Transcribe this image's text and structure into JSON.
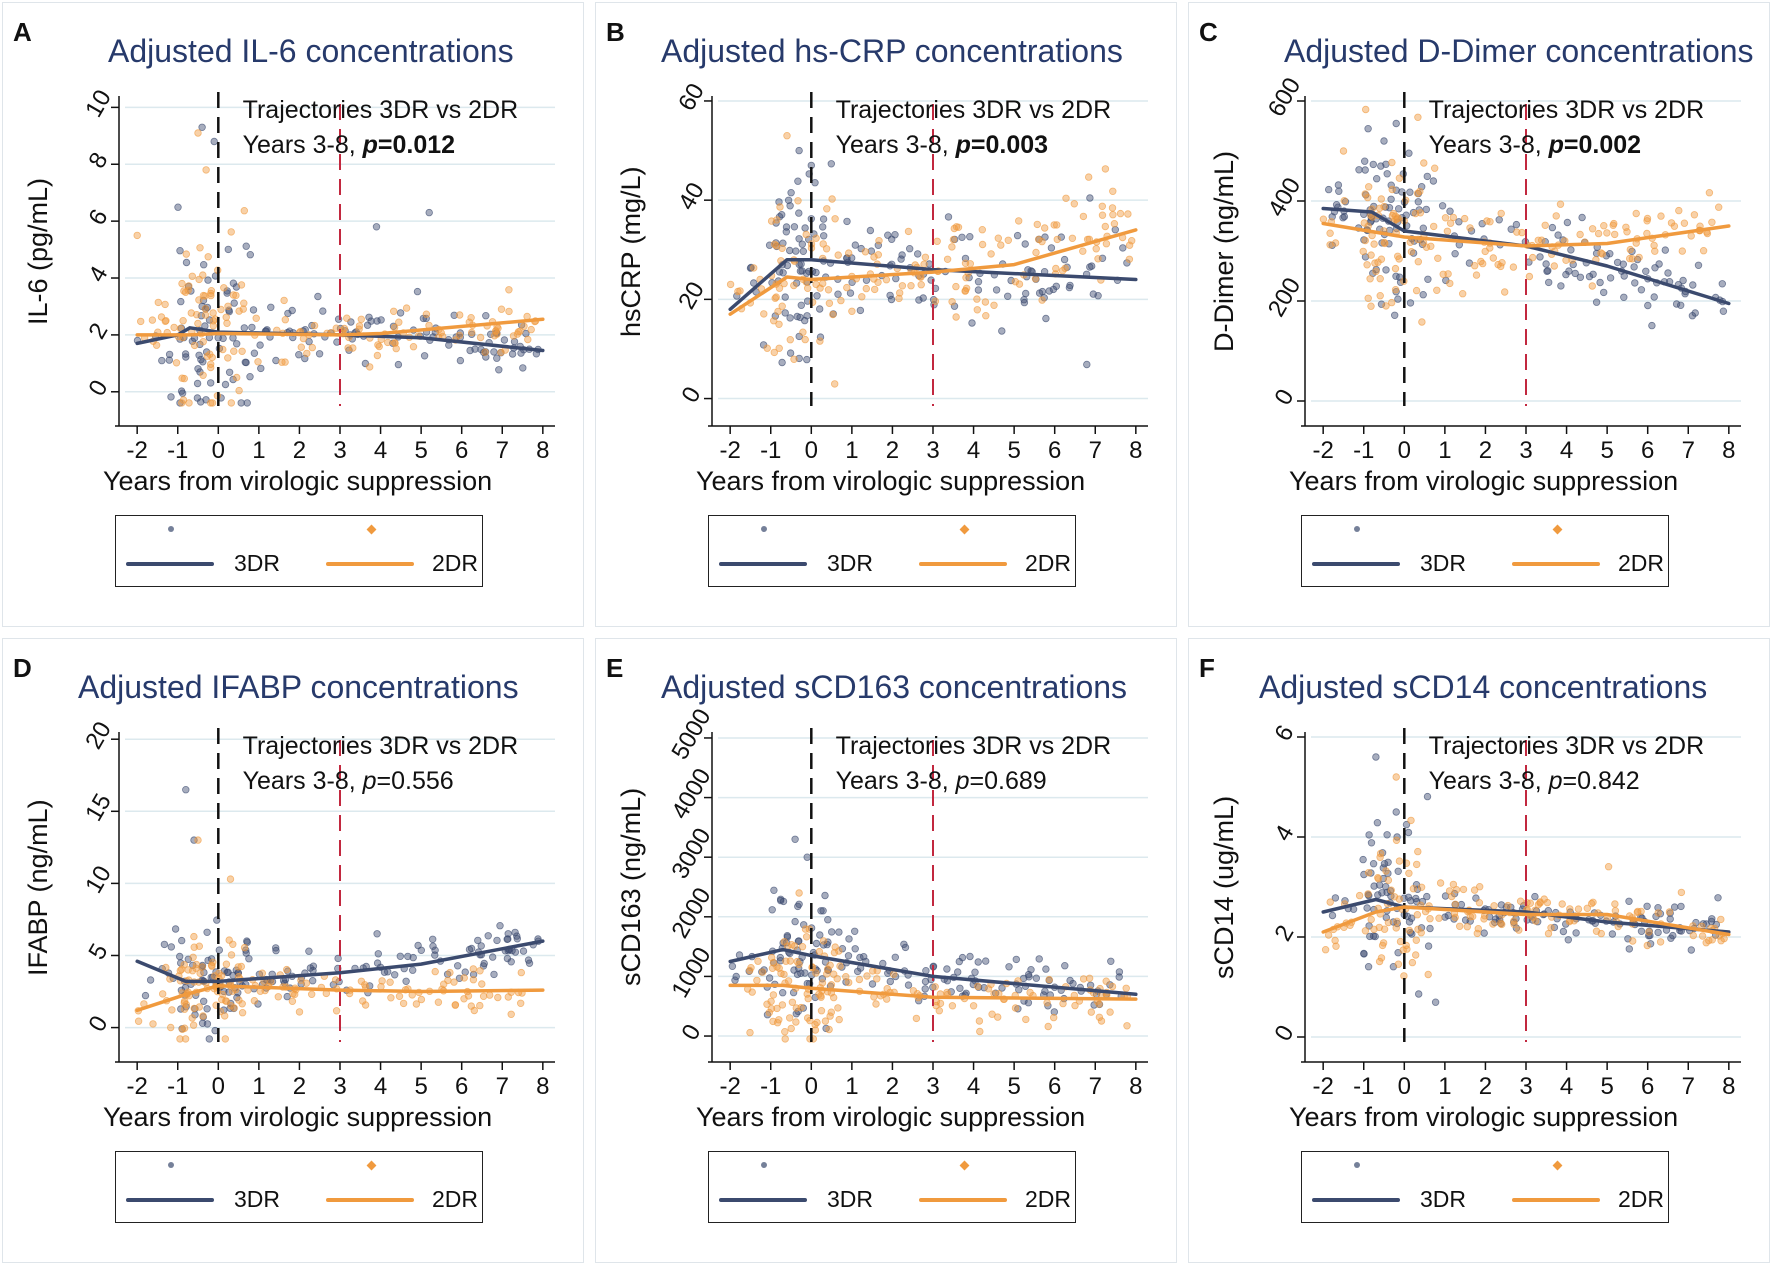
{
  "figure": {
    "x_axis_label": "Years from virologic suppression",
    "legend": {
      "series_a": "3DR",
      "series_b": "2DR"
    },
    "colors": {
      "series_a": "#3b4a6e",
      "series_b": "#f09a3e",
      "title": "#273a6b",
      "ref_line_red": "#c2283f",
      "ref_line_black": "#111111",
      "grid": "#dce9ee"
    }
  },
  "chart_data": [
    {
      "letter": "A",
      "type": "scatter",
      "title": "Adjusted IL-6 concentrations",
      "ylabel": "IL-6 (pg/mL)",
      "xlim": [
        -2.3,
        8.3
      ],
      "ylim": [
        -0.5,
        10.4
      ],
      "xticks": [
        -2,
        -1,
        0,
        1,
        2,
        3,
        4,
        5,
        6,
        7,
        8
      ],
      "yticks": [
        0,
        2,
        4,
        6,
        8,
        10
      ],
      "annotation": {
        "line1": "Trajectories 3DR vs 2DR",
        "line2_prefix": "Years 3-8, ",
        "p_value": "p=0.012",
        "significant": true
      },
      "series": [
        {
          "name": "3DR",
          "x": [
            -2,
            -1,
            -0.7,
            0,
            3,
            5,
            8
          ],
          "y": [
            1.7,
            2.0,
            2.25,
            2.1,
            2.0,
            1.9,
            1.45
          ]
        },
        {
          "name": "2DR",
          "x": [
            -2,
            -0.7,
            0,
            3,
            4,
            8
          ],
          "y": [
            2.0,
            2.0,
            2.05,
            2.0,
            2.05,
            2.55
          ]
        }
      ],
      "scatter_summary": {
        "center": 2.0,
        "spread": 0.75,
        "early_spread": 2.6,
        "outliers_a": [
          [
            -0.4,
            9.3
          ],
          [
            -0.1,
            8.8
          ],
          [
            3.9,
            5.8
          ],
          [
            5.2,
            6.3
          ]
        ],
        "outliers_b": [
          [
            -0.5,
            9.1
          ],
          [
            -2,
            5.5
          ],
          [
            -0.3,
            7.8
          ]
        ]
      }
    },
    {
      "letter": "B",
      "type": "scatter",
      "title": "Adjusted hs-CRP concentrations",
      "ylabel": "hsCRP (mg/L)",
      "xlim": [
        -2.3,
        8.3
      ],
      "ylim": [
        -1.5,
        61
      ],
      "xticks": [
        -2,
        -1,
        0,
        1,
        2,
        3,
        4,
        5,
        6,
        7,
        8
      ],
      "yticks": [
        0,
        20,
        40,
        60
      ],
      "annotation": {
        "line1": "Trajectories 3DR vs 2DR",
        "line2_prefix": "Years 3-8, ",
        "p_value": "p=0.003",
        "significant": true
      },
      "series": [
        {
          "name": "3DR",
          "x": [
            -2,
            -0.6,
            0,
            3,
            8
          ],
          "y": [
            18,
            28,
            28,
            26,
            24
          ]
        },
        {
          "name": "2DR",
          "x": [
            -2,
            -0.6,
            0,
            3,
            5,
            8
          ],
          "y": [
            17,
            24.5,
            24,
            25.5,
            27,
            34
          ]
        }
      ],
      "scatter_summary": {
        "center": 26,
        "spread": 8,
        "early_spread": 14,
        "outliers_a": [
          [
            -0.3,
            50
          ],
          [
            0,
            47
          ]
        ],
        "outliers_b": [
          [
            -0.6,
            53
          ]
        ]
      }
    },
    {
      "letter": "C",
      "type": "scatter",
      "title": "Adjusted D-Dimer concentrations",
      "ylabel": "D-Dimer (ng/mL)",
      "xlim": [
        -2.3,
        8.3
      ],
      "ylim": [
        -10,
        610
      ],
      "xticks": [
        -2,
        -1,
        0,
        1,
        2,
        3,
        4,
        5,
        6,
        7,
        8
      ],
      "yticks": [
        0,
        200,
        400,
        600
      ],
      "annotation": {
        "line1": "Trajectories 3DR vs 2DR",
        "line2_prefix": "Years 3-8, ",
        "p_value": "p=0.002",
        "significant": true
      },
      "series": [
        {
          "name": "3DR",
          "x": [
            -2,
            -0.8,
            0,
            3,
            5,
            8
          ],
          "y": [
            385,
            378,
            340,
            310,
            270,
            195
          ]
        },
        {
          "name": "2DR",
          "x": [
            -2,
            0,
            3,
            5,
            8
          ],
          "y": [
            355,
            328,
            310,
            315,
            350
          ]
        }
      ],
      "scatter_summary": {
        "center": 325,
        "spread": 55,
        "early_spread": 110,
        "outliers_a": [
          [
            -0.2,
            555
          ],
          [
            -0.5,
            520
          ]
        ],
        "outliers_b": [
          [
            -1.5,
            500
          ]
        ]
      }
    },
    {
      "letter": "D",
      "type": "scatter",
      "title": "Adjusted IFABP concentrations",
      "ylabel": "IFABP (ng/mL)",
      "xlim": [
        -2.3,
        8.3
      ],
      "ylim": [
        -1,
        20.5
      ],
      "xticks": [
        -2,
        -1,
        0,
        1,
        2,
        3,
        4,
        5,
        6,
        7,
        8
      ],
      "yticks": [
        0,
        5,
        10,
        15,
        20
      ],
      "annotation": {
        "line1": "Trajectories 3DR vs 2DR",
        "line2_prefix": "Years 3-8, ",
        "p_value": "p=0.556",
        "significant": false
      },
      "series": [
        {
          "name": "3DR",
          "x": [
            -2,
            -0.8,
            0,
            3,
            5,
            8
          ],
          "y": [
            4.6,
            3.2,
            3.2,
            3.8,
            4.4,
            6.0
          ]
        },
        {
          "name": "2DR",
          "x": [
            -2,
            -0.8,
            0,
            3,
            5,
            8
          ],
          "y": [
            1.2,
            2.3,
            2.9,
            2.6,
            2.5,
            2.6
          ]
        }
      ],
      "scatter_summary": {
        "center": 3.0,
        "spread": 1.3,
        "early_spread": 2.5,
        "outliers_a": [
          [
            -0.8,
            16.5
          ],
          [
            -0.6,
            13.0
          ]
        ],
        "outliers_b": [
          [
            0.3,
            10.3
          ],
          [
            -0.5,
            13.0
          ]
        ]
      }
    },
    {
      "letter": "E",
      "type": "scatter",
      "title": "Adjusted sCD163 concentrations",
      "ylabel": "sCD163 (ng/mL)",
      "xlim": [
        -2.3,
        8.3
      ],
      "ylim": [
        -100,
        5100
      ],
      "xticks": [
        -2,
        -1,
        0,
        1,
        2,
        3,
        4,
        5,
        6,
        7,
        8
      ],
      "yticks": [
        0,
        1000,
        2000,
        3000,
        4000,
        5000
      ],
      "annotation": {
        "line1": "Trajectories 3DR vs 2DR",
        "line2_prefix": "Years 3-8, ",
        "p_value": "p=0.689",
        "significant": false
      },
      "series": [
        {
          "name": "3DR",
          "x": [
            -2,
            -0.7,
            0,
            3,
            8
          ],
          "y": [
            1250,
            1450,
            1350,
            1000,
            700
          ]
        },
        {
          "name": "2DR",
          "x": [
            -2,
            -0.7,
            0,
            3,
            8
          ],
          "y": [
            850,
            850,
            800,
            650,
            620
          ]
        }
      ],
      "scatter_summary": {
        "center": 900,
        "spread": 330,
        "early_spread": 800,
        "outliers_a": [
          [
            -0.4,
            3300
          ],
          [
            -0.1,
            3000
          ]
        ],
        "outliers_b": [
          [
            -0.3,
            2400
          ]
        ]
      }
    },
    {
      "letter": "F",
      "type": "scatter",
      "title": "Adjusted sCD14 concentrations",
      "ylabel": "sCD14 (ug/mL)",
      "xlim": [
        -2.3,
        8.3
      ],
      "ylim": [
        -0.1,
        6.1
      ],
      "xticks": [
        -2,
        -1,
        0,
        1,
        2,
        3,
        4,
        5,
        6,
        7,
        8
      ],
      "yticks": [
        0,
        2,
        4,
        6
      ],
      "annotation": {
        "line1": "Trajectories 3DR vs 2DR",
        "line2_prefix": "Years 3-8, ",
        "p_value": "p=0.842",
        "significant": false
      },
      "series": [
        {
          "name": "3DR",
          "x": [
            -2,
            -0.7,
            0,
            3,
            5,
            8
          ],
          "y": [
            2.5,
            2.75,
            2.6,
            2.5,
            2.3,
            2.1
          ]
        },
        {
          "name": "2DR",
          "x": [
            -2,
            -0.7,
            0,
            3,
            5,
            8
          ],
          "y": [
            2.1,
            2.5,
            2.6,
            2.45,
            2.45,
            2.05
          ]
        }
      ],
      "scatter_summary": {
        "center": 2.5,
        "spread": 0.35,
        "early_spread": 1.1,
        "outliers_a": [
          [
            -0.7,
            5.6
          ],
          [
            -0.2,
            4.5
          ]
        ],
        "outliers_b": [
          [
            -0.2,
            5.2
          ]
        ]
      }
    }
  ]
}
